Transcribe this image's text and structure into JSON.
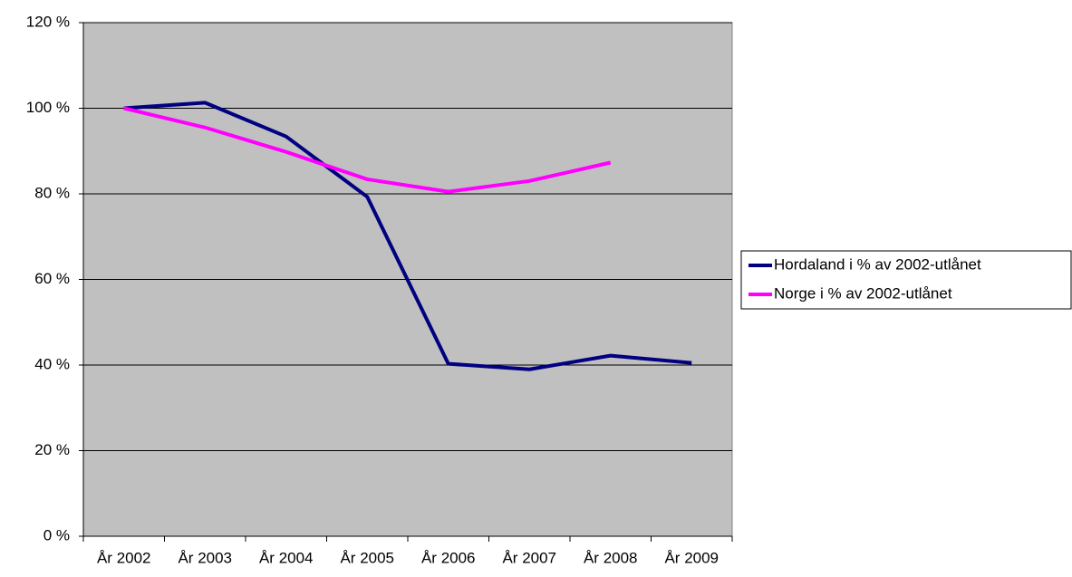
{
  "chart_data": {
    "type": "line",
    "categories": [
      "År 2002",
      "År 2003",
      "År 2004",
      "År 2005",
      "År 2006",
      "År 2007",
      "År 2008",
      "År 2009"
    ],
    "series": [
      {
        "name": "Hordaland i % av 2002-utlånet",
        "color": "#000080",
        "values": [
          100,
          101.3,
          93.4,
          79.3,
          40.3,
          39,
          42.2,
          40.5
        ]
      },
      {
        "name": "Norge i % av 2002-utlånet",
        "color": "#ff00ff",
        "values": [
          100,
          95.5,
          89.8,
          83.4,
          80.5,
          83,
          87.3,
          null
        ]
      }
    ],
    "ylim": [
      0,
      120
    ],
    "yticks": [
      {
        "value": 0,
        "label": "0 %"
      },
      {
        "value": 20,
        "label": "20 %"
      },
      {
        "value": 40,
        "label": "40 %"
      },
      {
        "value": 60,
        "label": "60 %"
      },
      {
        "value": 80,
        "label": "80 %"
      },
      {
        "value": 100,
        "label": "100 %"
      },
      {
        "value": 120,
        "label": "120 %"
      }
    ],
    "grid": true,
    "legend": "right",
    "plot_background": "#c0c0c0"
  }
}
